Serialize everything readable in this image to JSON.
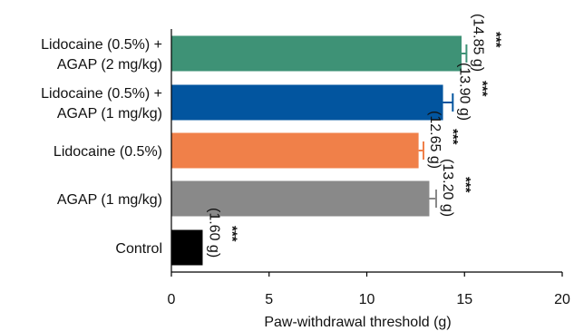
{
  "chart_data": {
    "type": "bar",
    "orientation": "horizontal",
    "categories": [
      [
        "Lidocaine (0.5%) +",
        "AGAP (2 mg/kg)"
      ],
      [
        "Lidocaine (0.5%) +",
        "AGAP (1 mg/kg)"
      ],
      [
        "Lidocaine (0.5%)"
      ],
      [
        "AGAP (1 mg/kg)"
      ],
      [
        "Control"
      ]
    ],
    "values": [
      14.85,
      13.9,
      12.65,
      13.2,
      1.6
    ],
    "errors": [
      0.25,
      0.5,
      0.25,
      0.35,
      0
    ],
    "data_labels": [
      "(14.85 g)",
      "(13.90 g)",
      "(12.65 g)",
      "(13.20 g)",
      "(1.60 g)"
    ],
    "significance": [
      "***",
      "***",
      "***",
      "***",
      "***"
    ],
    "colors": [
      "#3e9276",
      "#02559f",
      "#f08049",
      "#898989",
      "#000000"
    ],
    "xlabel": "Paw-withdrawal threshold (g)",
    "xlim": [
      0,
      20
    ],
    "xticks": [
      0,
      5,
      10,
      15,
      20
    ]
  }
}
